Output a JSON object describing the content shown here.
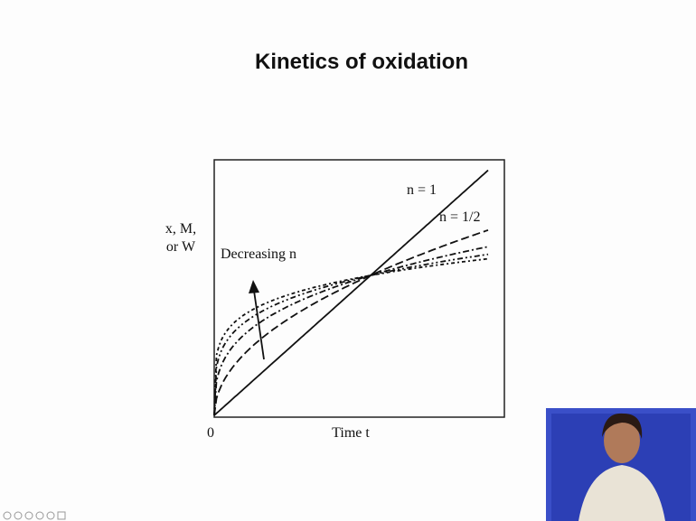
{
  "title": "Kinetics of oxidation",
  "figure": {
    "y_label_lines": [
      "x, M,",
      "or W"
    ],
    "x_label": "Time t",
    "origin_label": "0",
    "annotations": [
      "n = 1",
      "n = 1/2",
      "Decreasing n"
    ]
  }
}
